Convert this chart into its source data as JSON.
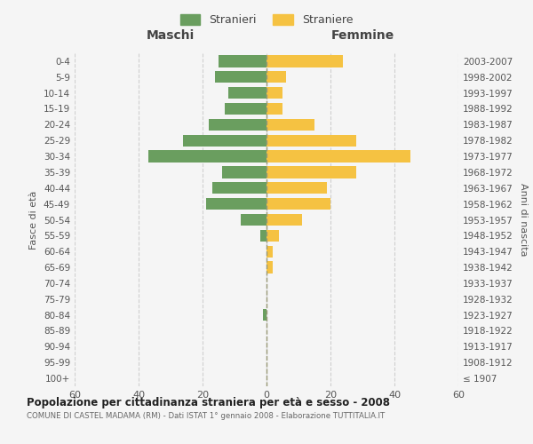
{
  "age_groups": [
    "100+",
    "95-99",
    "90-94",
    "85-89",
    "80-84",
    "75-79",
    "70-74",
    "65-69",
    "60-64",
    "55-59",
    "50-54",
    "45-49",
    "40-44",
    "35-39",
    "30-34",
    "25-29",
    "20-24",
    "15-19",
    "10-14",
    "5-9",
    "0-4"
  ],
  "birth_years": [
    "≤ 1907",
    "1908-1912",
    "1913-1917",
    "1918-1922",
    "1923-1927",
    "1928-1932",
    "1933-1937",
    "1938-1942",
    "1943-1947",
    "1948-1952",
    "1953-1957",
    "1958-1962",
    "1963-1967",
    "1968-1972",
    "1973-1977",
    "1978-1982",
    "1983-1987",
    "1988-1992",
    "1993-1997",
    "1998-2002",
    "2003-2007"
  ],
  "maschi": [
    0,
    0,
    0,
    0,
    1,
    0,
    0,
    0,
    0,
    2,
    8,
    19,
    17,
    14,
    37,
    26,
    18,
    13,
    12,
    16,
    15
  ],
  "femmine": [
    0,
    0,
    0,
    0,
    0,
    0,
    0,
    2,
    2,
    4,
    11,
    20,
    19,
    28,
    45,
    28,
    15,
    5,
    5,
    6,
    24
  ],
  "color_maschi": "#6a9e5f",
  "color_femmine": "#f5c242",
  "bg_color": "#f5f5f5",
  "grid_color": "#cccccc",
  "title": "Popolazione per cittadinanza straniera per età e sesso - 2008",
  "subtitle": "COMUNE DI CASTEL MADAMA (RM) - Dati ISTAT 1° gennaio 2008 - Elaborazione TUTTITALIA.IT",
  "legend_stranieri": "Stranieri",
  "legend_straniere": "Straniere",
  "label_maschi": "Maschi",
  "label_femmine": "Femmine",
  "ylabel_left": "Fasce di età",
  "ylabel_right": "Anni di nascita",
  "xlim": 60,
  "center_line_color": "#999977"
}
